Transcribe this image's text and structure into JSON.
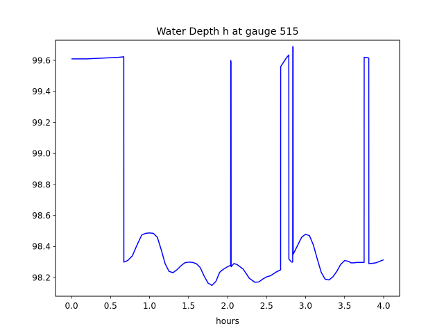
{
  "chart_data": {
    "type": "line",
    "title": "Water Depth h at gauge 515",
    "xlabel": "hours",
    "ylabel": "",
    "xlim": [
      -0.205,
      4.205
    ],
    "ylim": [
      98.08,
      99.73
    ],
    "grid": false,
    "legend": "none",
    "xticks": [
      0.0,
      0.5,
      1.0,
      1.5,
      2.0,
      2.5,
      3.0,
      3.5,
      4.0
    ],
    "xtick_labels": [
      "0.0",
      "0.5",
      "1.0",
      "1.5",
      "2.0",
      "2.5",
      "3.0",
      "3.5",
      "4.0"
    ],
    "yticks": [
      98.2,
      98.4,
      98.6,
      98.8,
      99.0,
      99.2,
      99.4,
      99.6
    ],
    "ytick_labels": [
      "98.2",
      "98.4",
      "98.6",
      "98.8",
      "99.0",
      "99.2",
      "99.4",
      "99.6"
    ],
    "series": [
      {
        "color": "#0000ff",
        "x": [
          0.0,
          0.2,
          0.4,
          0.6,
          0.67,
          0.671,
          0.72,
          0.78,
          0.84,
          0.9,
          0.95,
          1.0,
          1.05,
          1.1,
          1.15,
          1.2,
          1.25,
          1.3,
          1.35,
          1.4,
          1.45,
          1.5,
          1.55,
          1.6,
          1.65,
          1.7,
          1.75,
          1.8,
          1.85,
          1.9,
          1.95,
          2.0,
          2.04,
          2.041,
          2.045,
          2.046,
          2.08,
          2.12,
          2.2,
          2.28,
          2.35,
          2.4,
          2.45,
          2.5,
          2.55,
          2.62,
          2.68,
          2.681,
          2.72,
          2.76,
          2.785,
          2.786,
          2.82,
          2.835,
          2.836,
          2.84,
          2.841,
          2.9,
          2.95,
          3.0,
          3.05,
          3.1,
          3.15,
          3.2,
          3.25,
          3.3,
          3.35,
          3.4,
          3.45,
          3.5,
          3.55,
          3.58,
          3.62,
          3.66,
          3.75,
          3.751,
          3.8,
          3.81,
          3.811,
          3.85,
          3.9,
          4.0
        ],
        "y": [
          99.61,
          99.61,
          99.615,
          99.62,
          99.623,
          98.3,
          98.31,
          98.34,
          98.41,
          98.475,
          98.485,
          98.488,
          98.485,
          98.46,
          98.38,
          98.29,
          98.24,
          98.232,
          98.25,
          98.275,
          98.295,
          98.3,
          98.298,
          98.29,
          98.265,
          98.21,
          98.165,
          98.15,
          98.175,
          98.235,
          98.255,
          98.27,
          98.28,
          99.6,
          99.59,
          98.27,
          98.29,
          98.285,
          98.255,
          98.195,
          98.17,
          98.172,
          98.19,
          98.205,
          98.212,
          98.235,
          98.25,
          99.56,
          99.59,
          99.62,
          99.635,
          98.32,
          98.3,
          98.3,
          99.69,
          99.685,
          98.35,
          98.41,
          98.46,
          98.48,
          98.47,
          98.41,
          98.32,
          98.235,
          98.19,
          98.185,
          98.205,
          98.24,
          98.285,
          98.31,
          98.305,
          98.295,
          98.295,
          98.298,
          98.298,
          99.62,
          99.617,
          99.615,
          98.29,
          98.292,
          98.295,
          98.315
        ]
      }
    ]
  }
}
